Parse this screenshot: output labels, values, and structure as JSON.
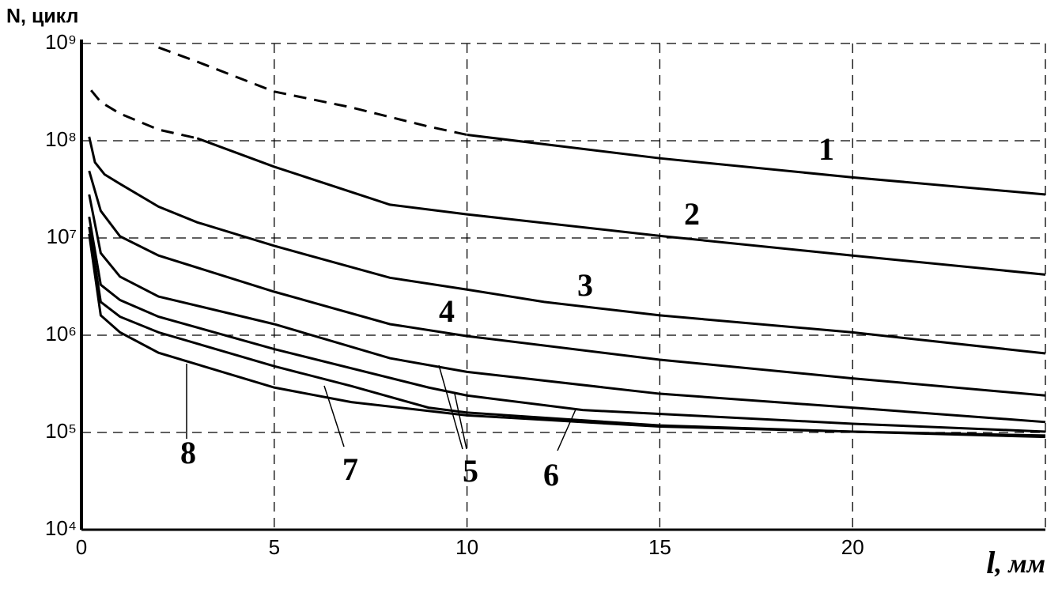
{
  "chart_data": {
    "type": "line",
    "y_label": "N, цикл",
    "x_label_var": "l",
    "x_label_unit": ", мм",
    "xlim": [
      0,
      25
    ],
    "xticks": [
      0,
      5,
      10,
      15,
      20
    ],
    "ylim": [
      10000,
      1000000000
    ],
    "yscale": "log",
    "yticks": [
      {
        "value": 10000,
        "label": "10⁴"
      },
      {
        "value": 100000,
        "label": "10⁵"
      },
      {
        "value": 1000000,
        "label": "10⁶"
      },
      {
        "value": 10000000,
        "label": "10⁷"
      },
      {
        "value": 100000000,
        "label": "10⁸"
      },
      {
        "value": 1000000000,
        "label": "10⁹"
      }
    ],
    "grid": true,
    "color": "#000000",
    "series": [
      {
        "style": "dashed",
        "x": [
          2,
          3,
          5,
          7,
          9,
          10
        ],
        "values": [
          910000000,
          650000000,
          320000000,
          220000000,
          140000000,
          115000000
        ]
      },
      {
        "name": "1",
        "style": "solid",
        "x": [
          10,
          15,
          20,
          25
        ],
        "values": [
          115000000,
          66000000,
          42000000,
          28000000
        ]
      },
      {
        "style": "dashed",
        "x": [
          0.25,
          0.5,
          1,
          2,
          3
        ],
        "values": [
          330000000,
          250000000,
          190000000,
          130000000,
          106000000
        ]
      },
      {
        "name": "2",
        "style": "solid",
        "x": [
          3,
          5,
          8,
          10,
          15,
          20,
          25
        ],
        "values": [
          106000000,
          54000000,
          22000000,
          17500000,
          10500000,
          6600000,
          4200000
        ]
      },
      {
        "name": "3",
        "style": "solid",
        "x": [
          0.2,
          0.35,
          0.6,
          1,
          2,
          3,
          5,
          8,
          10,
          12,
          15,
          20,
          25
        ],
        "values": [
          110000000,
          60000000,
          45000000,
          36000000,
          21000000,
          14500000,
          8300000,
          3900000,
          2950000,
          2200000,
          1600000,
          1070000,
          650000
        ]
      },
      {
        "name": "4",
        "style": "solid",
        "x": [
          0.2,
          0.5,
          1,
          2,
          5,
          8,
          10,
          15,
          20,
          25
        ],
        "values": [
          49000000,
          19000000,
          10400000,
          6600000,
          2800000,
          1300000,
          980000,
          560000,
          360000,
          240000
        ]
      },
      {
        "name": "5",
        "style": "solid",
        "x": [
          0.2,
          0.5,
          1,
          2,
          5,
          8,
          10,
          15,
          20,
          25
        ],
        "values": [
          28000000,
          7000000,
          4000000,
          2500000,
          1300000,
          580000,
          420000,
          250000,
          180000,
          128000
        ]
      },
      {
        "name": "6",
        "style": "solid",
        "x": [
          0.2,
          0.5,
          1,
          2,
          5,
          9,
          10,
          13,
          20,
          25
        ],
        "values": [
          16500000,
          3300000,
          2300000,
          1550000,
          720000,
          290000,
          240000,
          170000,
          123000,
          102000
        ]
      },
      {
        "name": "7",
        "style": "solid",
        "x": [
          0.2,
          0.5,
          1,
          2,
          5,
          7,
          9,
          10,
          15,
          20,
          25
        ],
        "values": [
          13000000,
          2200000,
          1550000,
          1070000,
          480000,
          300000,
          180000,
          160000,
          118000,
          102000,
          93000
        ]
      },
      {
        "name": "8",
        "style": "solid",
        "x": [
          0.2,
          0.5,
          1,
          2,
          5,
          7,
          10,
          15,
          20,
          25
        ],
        "values": [
          11000000,
          1600000,
          1070000,
          660000,
          290000,
          205000,
          150000,
          115000,
          102000,
          90000
        ]
      }
    ]
  }
}
